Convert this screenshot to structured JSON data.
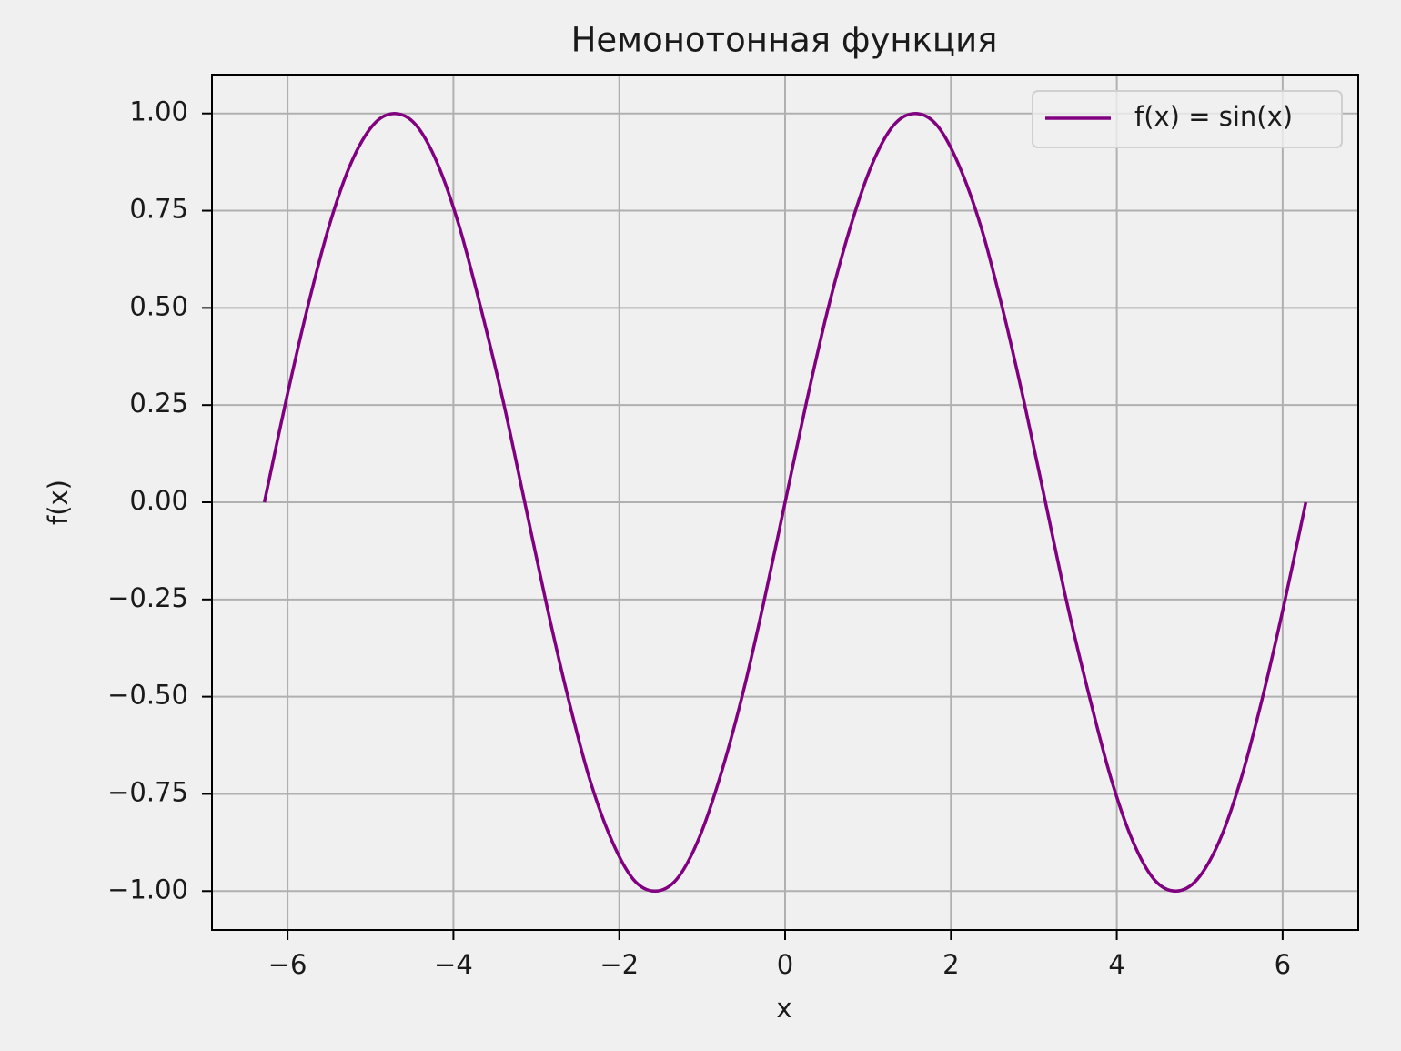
{
  "chart_data": {
    "type": "line",
    "title": "Немонотонная функция",
    "xlabel": "x",
    "ylabel": "f(x)",
    "x": [
      -6.28,
      -6.02,
      -5.76,
      -5.5,
      -5.24,
      -4.97,
      -4.71,
      -4.45,
      -4.19,
      -3.93,
      -3.67,
      -3.4,
      -3.14,
      -2.88,
      -2.62,
      -2.36,
      -2.09,
      -1.83,
      -1.57,
      -1.31,
      -1.05,
      -0.79,
      -0.52,
      -0.26,
      0,
      0.26,
      0.52,
      0.79,
      1.05,
      1.31,
      1.57,
      1.83,
      2.09,
      2.36,
      2.62,
      2.88,
      3.14,
      3.4,
      3.67,
      3.93,
      4.19,
      4.45,
      4.71,
      4.97,
      5.24,
      5.5,
      5.76,
      6.02,
      6.28
    ],
    "series": [
      {
        "name": "f(x) = sin(x)",
        "color": "#800080",
        "values": [
          0,
          0.26,
          0.5,
          0.71,
          0.87,
          0.97,
          1,
          0.97,
          0.87,
          0.71,
          0.5,
          0.26,
          0,
          -0.26,
          -0.5,
          -0.71,
          -0.87,
          -0.97,
          -1,
          -0.97,
          -0.87,
          -0.71,
          -0.5,
          -0.26,
          0,
          0.26,
          0.5,
          0.71,
          0.87,
          0.97,
          1,
          0.97,
          0.87,
          0.71,
          0.5,
          0.26,
          0,
          -0.26,
          -0.5,
          -0.71,
          -0.87,
          -0.97,
          -1,
          -0.97,
          -0.87,
          -0.71,
          -0.5,
          -0.26,
          0
        ]
      }
    ],
    "xlim": [
      -6.912,
      6.912
    ],
    "ylim": [
      -1.1,
      1.1
    ],
    "xticks": [
      {
        "value": -6,
        "label": "−6"
      },
      {
        "value": -4,
        "label": "−4"
      },
      {
        "value": -2,
        "label": "−2"
      },
      0,
      2,
      4,
      6
    ],
    "yticks": [
      {
        "value": -1,
        "label": "−1.00"
      },
      {
        "value": -0.75,
        "label": "−0.75"
      },
      {
        "value": -0.5,
        "label": "−0.50"
      },
      {
        "value": -0.25,
        "label": "−0.25"
      },
      {
        "value": 0,
        "label": "0.00"
      },
      {
        "value": 0.25,
        "label": "0.25"
      },
      {
        "value": 0.5,
        "label": "0.50"
      },
      {
        "value": 0.75,
        "label": "0.75"
      },
      {
        "value": 1,
        "label": "1.00"
      }
    ],
    "grid": true,
    "legend": "upper right"
  }
}
